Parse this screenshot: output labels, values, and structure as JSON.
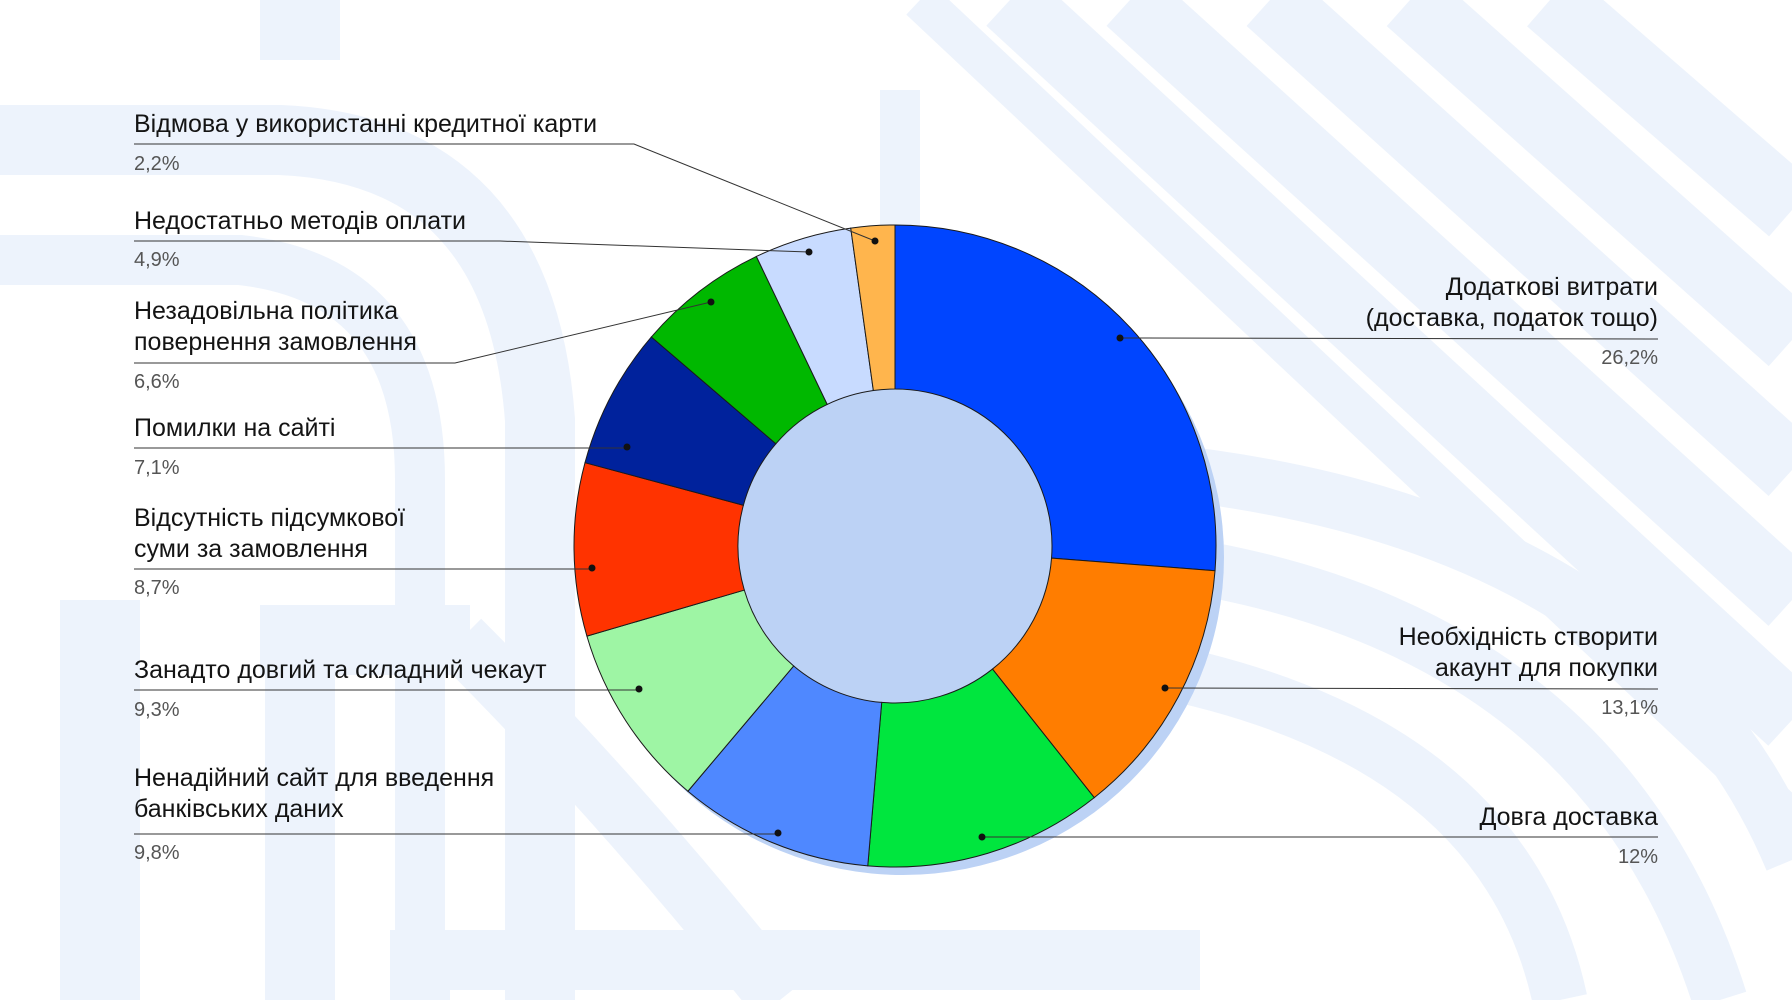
{
  "chart_data": {
    "type": "pie",
    "donut": true,
    "legend": "leader-line labels around chart",
    "slices": [
      {
        "label": "Додаткові витрати",
        "label_line2": "(доставка, податок тощо)",
        "percent_text": "26,2%",
        "value": 26.2,
        "color": "#0045ff"
      },
      {
        "label": "Необхідність створити",
        "label_line2": "акаунт для покупки ",
        "percent_text": "13,1%",
        "value": 13.1,
        "color": "#ff7d00"
      },
      {
        "label": "Довга доставка",
        "label_line2": "",
        "percent_text": "12%",
        "value": 12.0,
        "color": "#00e63e"
      },
      {
        "label": "Ненадійний сайт для введення",
        "label_line2": "банківських даних",
        "percent_text": "9,8%",
        "value": 9.8,
        "color": "#4f88ff"
      },
      {
        "label": "Занадто довгий та складний чекаут",
        "label_line2": "",
        "percent_text": "9,3%",
        "value": 9.3,
        "color": "#9ef5a4"
      },
      {
        "label": "Відсутність підсумкової",
        "label_line2": "суми за замовлення",
        "percent_text": "8,7%",
        "value": 8.7,
        "color": "#ff3300"
      },
      {
        "label": "Помилки на сайті",
        "label_line2": "",
        "percent_text": "7,1%",
        "value": 7.1,
        "color": "#00229c"
      },
      {
        "label": "Незадовільна політика",
        "label_line2": "повернення замовлення",
        "percent_text": "6,6%",
        "value": 6.6,
        "color": "#00b800"
      },
      {
        "label": "Недостатньо методів оплати",
        "label_line2": "",
        "percent_text": "4,9%",
        "value": 4.9,
        "color": "#c8dbff"
      },
      {
        "label": "Відмова у використанні кредитної карти",
        "label_line2": "",
        "percent_text": "2,2%",
        "value": 2.2,
        "color": "#ffb54d"
      }
    ]
  }
}
